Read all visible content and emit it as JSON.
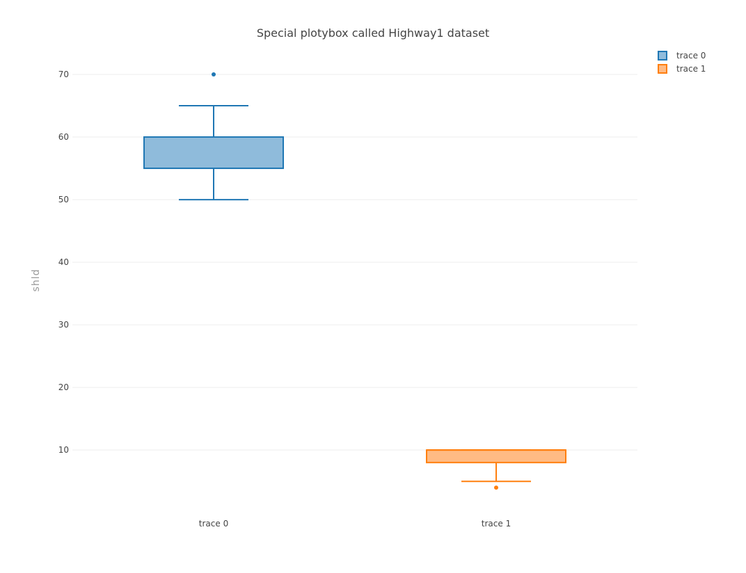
{
  "chart_data": {
    "type": "box",
    "title": "Special plotybox called Highway1 dataset",
    "xlabel": "",
    "ylabel": "shld",
    "ylim": [
      0.8,
      73
    ],
    "yticks": [
      10,
      20,
      30,
      40,
      50,
      60,
      70
    ],
    "grid": true,
    "legend_position": "top-right",
    "categories": [
      "trace 0",
      "trace 1"
    ],
    "series": [
      {
        "name": "trace 0",
        "color": "#1f77b4",
        "fill": "#8fbbdb",
        "lowerfence": 50,
        "q1": 55,
        "median": 55,
        "q3": 60,
        "upperfence": 65,
        "outliers": [
          70
        ]
      },
      {
        "name": "trace 1",
        "color": "#ff7f0e",
        "fill": "#ffbb84",
        "lowerfence": 5,
        "q1": 8,
        "median": 10,
        "q3": 10,
        "upperfence": 10,
        "outliers": [
          4
        ]
      }
    ]
  }
}
